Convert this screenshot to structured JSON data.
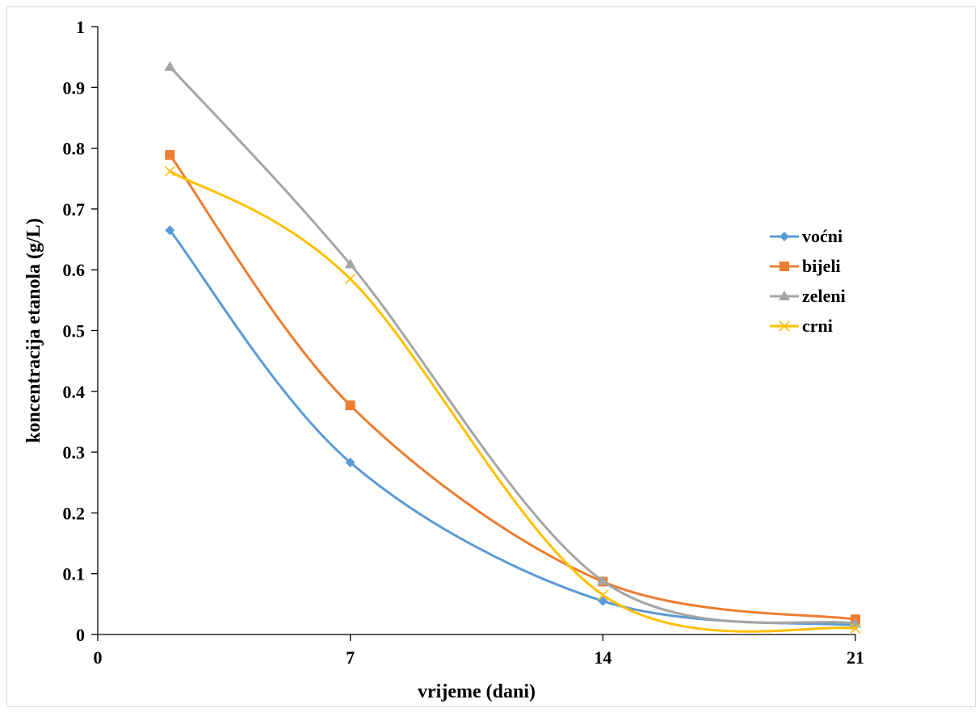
{
  "chart_data": {
    "type": "line",
    "smooth": true,
    "xlabel": "vrijeme (dani)",
    "ylabel": "koncentracija etanola (g/L)",
    "xlim": [
      0,
      21
    ],
    "ylim": [
      0,
      1
    ],
    "xticks": [
      "0",
      "7",
      "14",
      "21"
    ],
    "yticks": [
      "0",
      "0.1",
      "0.2",
      "0.3",
      "0.4",
      "0.5",
      "0.6",
      "0.7",
      "0.8",
      "0.9",
      "1"
    ],
    "grid": false,
    "legend_position": "right",
    "x": [
      2,
      7,
      14,
      21
    ],
    "series": [
      {
        "name": "voćni",
        "color": "#5b9bd5",
        "marker": "diamond",
        "values": [
          0.665,
          0.283,
          0.055,
          0.015
        ]
      },
      {
        "name": "bijeli",
        "color": "#ed7d31",
        "marker": "square",
        "values": [
          0.789,
          0.377,
          0.087,
          0.025
        ]
      },
      {
        "name": "zeleni",
        "color": "#a5a5a5",
        "marker": "triangle",
        "values": [
          0.934,
          0.609,
          0.088,
          0.018
        ]
      },
      {
        "name": "crni",
        "color": "#ffc000",
        "marker": "x",
        "values": [
          0.762,
          0.585,
          0.065,
          0.01
        ]
      }
    ]
  }
}
